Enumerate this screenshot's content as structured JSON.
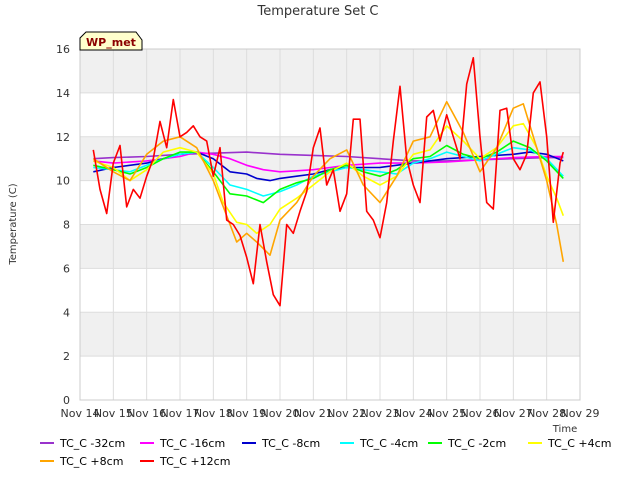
{
  "chart_data": {
    "type": "line",
    "title": "Temperature Set C",
    "xlabel": "Time",
    "ylabel": "Temperature (C)",
    "badge": "WP_met",
    "xlim": [
      14,
      29
    ],
    "ylim": [
      0,
      16
    ],
    "x_ticks": [
      14,
      15,
      16,
      17,
      18,
      19,
      20,
      21,
      22,
      23,
      24,
      25,
      26,
      27,
      28,
      29
    ],
    "x_tick_labels": [
      "Nov 14",
      "Nov 15",
      "Nov 16",
      "Nov 17",
      "Nov 18",
      "Nov 19",
      "Nov 20",
      "Nov 21",
      "Nov 22",
      "Nov 23",
      "Nov 24",
      "Nov 25",
      "Nov 26",
      "Nov 27",
      "Nov 28",
      "Nov 29"
    ],
    "y_ticks": [
      0,
      2,
      4,
      6,
      8,
      10,
      12,
      14,
      16
    ],
    "y_tick_labels": [
      "0",
      "2",
      "4",
      "6",
      "8",
      "10",
      "12",
      "14",
      "16"
    ],
    "grid": true,
    "legend_position": "bottom",
    "series": [
      {
        "name": "TC_C -32cm",
        "color": "#9932cc",
        "x": [
          14.4,
          15,
          16,
          17,
          18,
          19,
          20,
          21,
          22,
          23,
          24,
          25,
          26,
          27,
          28,
          28.5
        ],
        "y": [
          11.0,
          11.05,
          11.1,
          11.2,
          11.25,
          11.3,
          11.2,
          11.15,
          11.1,
          11.0,
          10.9,
          10.9,
          10.95,
          11.0,
          11.05,
          11.05
        ]
      },
      {
        "name": "TC_C -16cm",
        "color": "#ff00ff",
        "x": [
          14.4,
          15,
          16,
          17,
          17.5,
          18,
          18.5,
          19,
          19.5,
          20,
          20.5,
          21,
          21.5,
          22,
          23,
          24,
          25,
          26,
          27,
          28,
          28.5
        ],
        "y": [
          10.9,
          10.8,
          10.9,
          11.1,
          11.3,
          11.2,
          11.0,
          10.7,
          10.5,
          10.4,
          10.45,
          10.5,
          10.6,
          10.7,
          10.8,
          10.8,
          10.85,
          10.95,
          11.05,
          11.1,
          11.1
        ]
      },
      {
        "name": "TC_C -8cm",
        "color": "#0000cd",
        "x": [
          14.4,
          15,
          16,
          17,
          17.5,
          18,
          18.5,
          19,
          19.3,
          19.7,
          20,
          20.5,
          21,
          21.5,
          22,
          23,
          24,
          25,
          26,
          27,
          27.5,
          28,
          28.5
        ],
        "y": [
          10.4,
          10.6,
          10.8,
          11.2,
          11.3,
          11.0,
          10.4,
          10.3,
          10.1,
          10.0,
          10.1,
          10.2,
          10.3,
          10.5,
          10.6,
          10.6,
          10.8,
          11.0,
          11.1,
          11.2,
          11.3,
          11.2,
          10.9
        ]
      },
      {
        "name": "TC_C -4cm",
        "color": "#00ffff",
        "x": [
          14.4,
          15,
          15.5,
          16,
          16.5,
          17,
          17.5,
          18,
          18.5,
          19,
          19.5,
          20,
          20.5,
          21,
          21.5,
          22,
          22.5,
          23,
          23.5,
          24,
          24.5,
          25,
          25.5,
          26,
          26.5,
          27,
          27.5,
          28,
          28.5
        ],
        "y": [
          10.6,
          10.5,
          10.4,
          10.7,
          11.0,
          11.2,
          11.3,
          10.6,
          9.8,
          9.6,
          9.3,
          9.5,
          9.8,
          10.2,
          10.4,
          10.6,
          10.5,
          10.4,
          10.3,
          10.8,
          11.0,
          11.3,
          11.1,
          10.9,
          11.2,
          11.5,
          11.4,
          11.0,
          10.2
        ]
      },
      {
        "name": "TC_C -2cm",
        "color": "#00ff00",
        "x": [
          14.4,
          15,
          15.5,
          16,
          16.5,
          17,
          17.5,
          18,
          18.5,
          19,
          19.5,
          20,
          20.5,
          21,
          21.5,
          22,
          22.5,
          23,
          23.5,
          24,
          24.5,
          25,
          25.5,
          26,
          26.5,
          27,
          27.5,
          28,
          28.5
        ],
        "y": [
          10.7,
          10.5,
          10.3,
          10.6,
          11.0,
          11.3,
          11.3,
          10.4,
          9.4,
          9.3,
          9.0,
          9.6,
          9.9,
          10.1,
          10.5,
          10.7,
          10.4,
          10.2,
          10.5,
          11.0,
          11.1,
          11.6,
          11.2,
          11.0,
          11.3,
          11.8,
          11.5,
          10.9,
          10.1
        ]
      },
      {
        "name": "TC_C +4cm",
        "color": "#ffff00",
        "x": [
          14.4,
          15,
          15.5,
          16,
          16.5,
          17,
          17.5,
          18,
          18.3,
          18.7,
          19,
          19.3,
          19.7,
          20,
          20.5,
          21,
          21.5,
          22,
          22.5,
          23,
          23.5,
          24,
          24.5,
          25,
          25.5,
          26,
          26.5,
          27,
          27.3,
          27.7,
          28,
          28.3,
          28.5
        ],
        "y": [
          10.9,
          10.6,
          10.0,
          10.5,
          11.3,
          11.5,
          11.3,
          10.3,
          9.0,
          8.1,
          8.0,
          7.6,
          8.0,
          8.7,
          9.2,
          9.8,
          10.4,
          10.8,
          10.2,
          9.8,
          10.2,
          11.2,
          11.4,
          12.5,
          11.8,
          11.0,
          11.5,
          12.5,
          12.6,
          11.5,
          10.2,
          9.2,
          8.4
        ]
      },
      {
        "name": "TC_C +8cm",
        "color": "#ffa500",
        "x": [
          14.4,
          15,
          15.5,
          16,
          16.5,
          17,
          17.5,
          18,
          18.3,
          18.7,
          19,
          19.3,
          19.7,
          20,
          20.5,
          21,
          21.5,
          22,
          22.5,
          23,
          23.5,
          24,
          24.5,
          25,
          25.5,
          26,
          26.5,
          27,
          27.3,
          27.7,
          28,
          28.3,
          28.5
        ],
        "y": [
          11.0,
          10.4,
          10.0,
          11.2,
          11.8,
          12.0,
          11.5,
          10.0,
          8.8,
          7.2,
          7.6,
          7.2,
          6.6,
          8.2,
          9.0,
          10.2,
          11.0,
          11.4,
          9.8,
          9.0,
          10.2,
          11.8,
          12.0,
          13.6,
          12.2,
          10.4,
          11.5,
          13.3,
          13.5,
          11.5,
          10.0,
          8.0,
          6.3
        ]
      },
      {
        "name": "TC_C +12cm",
        "color": "#ff0000",
        "x": [
          14.4,
          14.6,
          14.8,
          15.0,
          15.2,
          15.4,
          15.6,
          15.8,
          16.0,
          16.2,
          16.4,
          16.6,
          16.8,
          17.0,
          17.2,
          17.4,
          17.6,
          17.8,
          18.0,
          18.2,
          18.4,
          18.6,
          18.8,
          19.0,
          19.2,
          19.4,
          19.6,
          19.8,
          20.0,
          20.2,
          20.4,
          20.6,
          20.8,
          21.0,
          21.2,
          21.4,
          21.6,
          21.8,
          22.0,
          22.2,
          22.4,
          22.6,
          22.8,
          23.0,
          23.2,
          23.4,
          23.6,
          23.8,
          24.0,
          24.2,
          24.4,
          24.6,
          24.8,
          25.0,
          25.2,
          25.4,
          25.6,
          25.8,
          26.0,
          26.2,
          26.4,
          26.6,
          26.8,
          27.0,
          27.2,
          27.4,
          27.6,
          27.8,
          28.0,
          28.2,
          28.4,
          28.5
        ],
        "y": [
          11.4,
          9.6,
          8.5,
          10.8,
          11.6,
          8.8,
          9.6,
          9.2,
          10.2,
          11.0,
          12.7,
          11.5,
          13.7,
          12.0,
          12.2,
          12.5,
          12.0,
          11.8,
          10.2,
          11.5,
          8.2,
          8.0,
          7.5,
          6.5,
          5.3,
          8.0,
          6.3,
          4.8,
          4.3,
          8.0,
          7.6,
          8.6,
          9.5,
          11.5,
          12.4,
          9.8,
          10.5,
          8.6,
          9.4,
          12.8,
          12.8,
          8.6,
          8.2,
          7.4,
          9.0,
          11.8,
          14.3,
          11.0,
          9.8,
          9.0,
          12.9,
          13.2,
          11.8,
          13.0,
          12.0,
          11.0,
          14.4,
          15.6,
          12.0,
          9.0,
          8.7,
          13.2,
          13.3,
          11.0,
          10.5,
          11.2,
          14.0,
          14.5,
          12.0,
          8.1,
          10.8,
          11.3
        ]
      }
    ]
  }
}
